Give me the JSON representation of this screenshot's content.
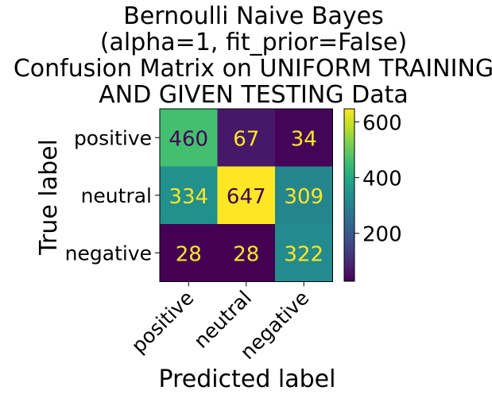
{
  "chart_data": {
    "type": "heatmap",
    "title_lines": [
      "Bernoulli Naive Bayes",
      "(alpha=1, fit_prior=False)",
      "Confusion Matrix on UNIFORM TRAINING",
      "AND GIVEN TESTING Data"
    ],
    "xlabel": "Predicted label",
    "ylabel": "True label",
    "x_categories": [
      "positive",
      "neutral",
      "negative"
    ],
    "y_categories": [
      "positive",
      "neutral",
      "negative"
    ],
    "values": [
      [
        460,
        67,
        34
      ],
      [
        334,
        647,
        309
      ],
      [
        28,
        28,
        322
      ]
    ],
    "colormap": "viridis",
    "color_range": [
      28,
      647
    ],
    "colorbar_ticks": [
      200,
      400,
      600
    ],
    "text_color_light": "#fde725",
    "text_color_dark": "#440154"
  }
}
